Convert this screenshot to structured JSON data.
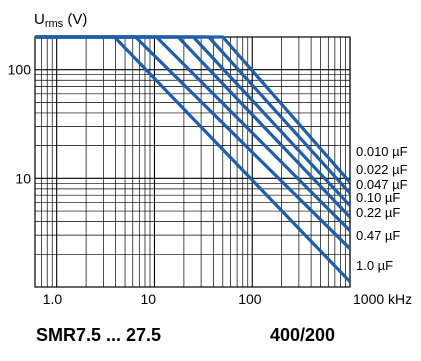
{
  "chart_data": {
    "type": "line",
    "xscale": "log",
    "yscale": "log",
    "xlim": [
      0.6,
      1000
    ],
    "ylim": [
      1,
      200
    ],
    "ylabel_main": "U",
    "ylabel_sub": "rms",
    "ylabel_unit": " (V)",
    "x_ticks": [
      1,
      10,
      100,
      1000
    ],
    "x_tick_labels": [
      "1.0",
      "10",
      "100",
      "1000 kHz"
    ],
    "y_ticks": [
      10,
      100
    ],
    "y_tick_labels": [
      "10",
      "100"
    ],
    "grid": true,
    "line_color": "#1f5fa8",
    "series": [
      {
        "name": "0.010 µF",
        "x": [
          0.6,
          50,
          1000
        ],
        "y": [
          200,
          200,
          9.2
        ]
      },
      {
        "name": "0.022 µF",
        "x": [
          0.6,
          36,
          1000
        ],
        "y": [
          200,
          200,
          7.3
        ]
      },
      {
        "name": "0.047 µF",
        "x": [
          0.6,
          25,
          1000
        ],
        "y": [
          200,
          200,
          5.6
        ]
      },
      {
        "name": "0.10 µF",
        "x": [
          0.6,
          17.5,
          1000
        ],
        "y": [
          200,
          200,
          4.4
        ]
      },
      {
        "name": "0.22 µF",
        "x": [
          0.6,
          10.5,
          1000
        ],
        "y": [
          200,
          200,
          3.3
        ]
      },
      {
        "name": "0.47 µF",
        "x": [
          0.6,
          6.4,
          1000
        ],
        "y": [
          200,
          200,
          2.25
        ]
      },
      {
        "name": "1.0 µF",
        "x": [
          0.6,
          3.9,
          1000
        ],
        "y": [
          200,
          200,
          1.12
        ]
      }
    ]
  },
  "footer": {
    "series_label": "SMR7.5 ... 27.5",
    "voltage_label": "400/200"
  }
}
